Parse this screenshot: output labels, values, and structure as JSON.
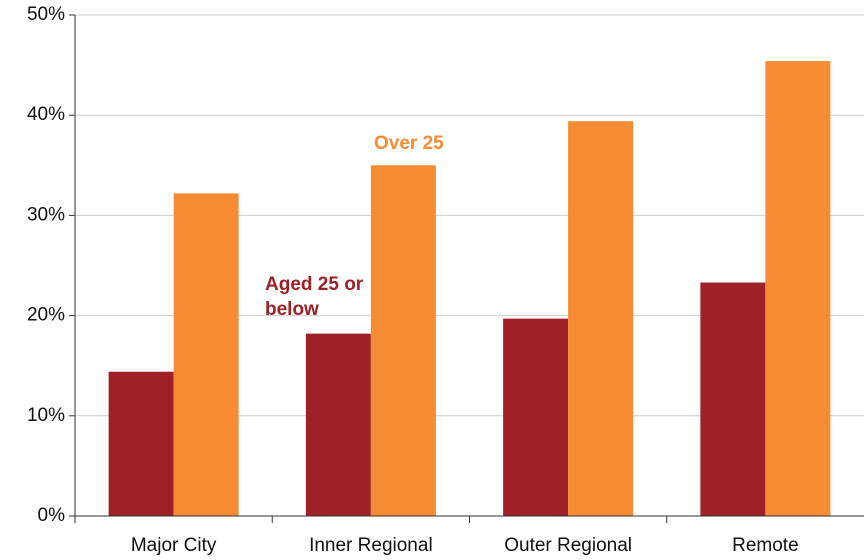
{
  "chart_data": {
    "type": "bar",
    "categories": [
      "Major City",
      "Inner Regional",
      "Outer Regional",
      "Remote"
    ],
    "series": [
      {
        "name": "Aged 25 or below",
        "color": "#9e2127",
        "values": [
          14.4,
          18.2,
          19.7,
          23.3
        ]
      },
      {
        "name": "Over 25",
        "color": "#f58b33",
        "values": [
          32.2,
          35.0,
          39.4,
          45.4
        ]
      }
    ],
    "ylim": [
      0,
      50
    ],
    "yticks": [
      {
        "value": 0,
        "label": "0%"
      },
      {
        "value": 10,
        "label": "10%"
      },
      {
        "value": 20,
        "label": "20%"
      },
      {
        "value": 30,
        "label": "30%"
      },
      {
        "value": 40,
        "label": "40%"
      },
      {
        "value": 50,
        "label": "50%"
      }
    ],
    "grid": true
  }
}
